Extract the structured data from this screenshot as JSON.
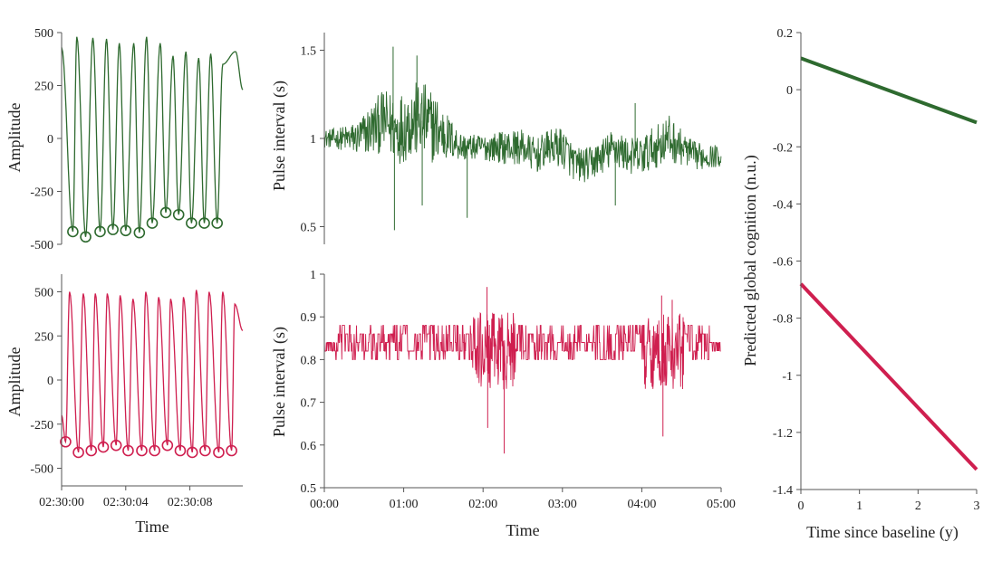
{
  "colors": {
    "green": "#2e6a2f",
    "red": "#cf1f4f",
    "axis": "#555555"
  },
  "chart_data": [
    {
      "id": "waveform-green",
      "type": "line",
      "xlabel": "",
      "ylabel": "Amplitude",
      "xlim": [
        0,
        11.3
      ],
      "ylim": [
        -500,
        500
      ],
      "yticks": [
        500,
        250,
        0,
        -250,
        -500
      ],
      "ytick_labels": [
        "500",
        "250",
        "0",
        "-250",
        "-500"
      ],
      "xticks": [],
      "xtick_labels": [],
      "series": [
        {
          "color": "green",
          "start_value": 430,
          "x_end": 11.3,
          "end_value": 230,
          "peaks_x": [
            0.95,
            1.95,
            2.8,
            3.6,
            4.5,
            5.3,
            6.15,
            6.95,
            7.75,
            8.55,
            9.3,
            10.05,
            10.85
          ],
          "peaks_y": [
            480,
            475,
            470,
            450,
            450,
            480,
            450,
            390,
            410,
            380,
            400,
            350,
            410
          ],
          "troughs_x": [
            0.7,
            1.5,
            2.4,
            3.2,
            4.0,
            4.85,
            5.65,
            6.5,
            7.3,
            8.1,
            8.9,
            9.7
          ],
          "troughs_y": [
            -440,
            -465,
            -440,
            -430,
            -435,
            -445,
            -400,
            -350,
            -360,
            -400,
            -400,
            -400
          ],
          "markers_at_troughs": true
        }
      ]
    },
    {
      "id": "waveform-red",
      "type": "line",
      "xlabel": "Time",
      "ylabel": "Amplitude",
      "xlim": [
        0,
        11.3
      ],
      "ylim": [
        -600,
        600
      ],
      "yticks": [
        500,
        250,
        0,
        -250,
        -500
      ],
      "ytick_labels": [
        "500",
        "250",
        "0",
        "-250",
        "-500"
      ],
      "xticks": [
        0,
        4,
        8
      ],
      "xtick_labels": [
        "02:30:00",
        "02:30:04",
        "02:30:08"
      ],
      "series": [
        {
          "color": "red",
          "start_value": -200,
          "x_end": 11.3,
          "end_value": 280,
          "peaks_x": [
            0.5,
            1.35,
            2.1,
            2.85,
            3.65,
            4.45,
            5.25,
            6.05,
            6.8,
            7.6,
            8.4,
            9.2,
            10.05,
            10.8
          ],
          "peaks_y": [
            500,
            490,
            490,
            490,
            480,
            460,
            500,
            470,
            460,
            470,
            510,
            500,
            500,
            430
          ],
          "troughs_x": [
            0.25,
            1.05,
            1.85,
            2.6,
            3.4,
            4.15,
            5.0,
            5.8,
            6.6,
            7.4,
            8.15,
            8.95,
            9.8,
            10.6
          ],
          "troughs_y": [
            -350,
            -410,
            -400,
            -380,
            -370,
            -400,
            -400,
            -400,
            -370,
            -400,
            -410,
            -400,
            -410,
            -400
          ],
          "markers_at_troughs": true
        }
      ]
    },
    {
      "id": "pulse-green",
      "type": "line",
      "xlabel": "",
      "ylabel": "Pulse interval (s)",
      "xlim": [
        0,
        300
      ],
      "ylim": [
        0.4,
        1.6
      ],
      "yticks": [
        0.5,
        1,
        1.5
      ],
      "ytick_labels": [
        "0.5",
        "1",
        "1.5"
      ],
      "xticks": [],
      "xtick_labels": [],
      "series": [
        {
          "color": "green",
          "step": 0.35,
          "envelope_t": [
            0,
            10,
            25,
            35,
            45,
            55,
            65,
            75,
            85,
            95,
            105,
            115,
            125,
            140,
            150,
            160,
            170,
            180,
            190,
            200,
            210,
            220,
            230,
            240,
            250,
            260,
            270,
            280,
            290,
            300
          ],
          "envelope_mean": [
            1.0,
            1.0,
            1.0,
            1.05,
            1.1,
            1.05,
            1.1,
            1.1,
            1.05,
            1.0,
            0.95,
            0.95,
            0.95,
            0.95,
            0.95,
            0.9,
            0.95,
            0.95,
            0.85,
            0.85,
            0.9,
            0.95,
            0.9,
            0.9,
            0.95,
            1.0,
            0.95,
            0.9,
            0.9,
            0.9
          ],
          "envelope_amp": [
            0.05,
            0.06,
            0.1,
            0.15,
            0.18,
            0.2,
            0.22,
            0.22,
            0.2,
            0.12,
            0.08,
            0.07,
            0.08,
            0.1,
            0.1,
            0.1,
            0.1,
            0.12,
            0.1,
            0.1,
            0.1,
            0.12,
            0.1,
            0.12,
            0.12,
            0.14,
            0.1,
            0.08,
            0.07,
            0.06
          ],
          "spikes": [
            {
              "x": 52,
              "y": 1.52
            },
            {
              "x": 53,
              "y": 0.48
            },
            {
              "x": 70,
              "y": 1.47
            },
            {
              "x": 74,
              "y": 0.62
            },
            {
              "x": 108,
              "y": 0.55
            },
            {
              "x": 235,
              "y": 1.2
            },
            {
              "x": 220,
              "y": 0.62
            }
          ]
        }
      ]
    },
    {
      "id": "pulse-red",
      "type": "line",
      "xlabel": "Time",
      "ylabel": "Pulse interval (s)",
      "xlim": [
        0,
        300
      ],
      "ylim": [
        0.5,
        1.0
      ],
      "yticks": [
        0.5,
        0.6,
        0.7,
        0.8,
        0.9,
        1
      ],
      "ytick_labels": [
        "0.5",
        "0.6",
        "0.7",
        "0.8",
        "0.9",
        "1"
      ],
      "xticks": [
        0,
        60,
        120,
        180,
        240,
        300
      ],
      "xtick_labels": [
        "00:00",
        "01:00",
        "02:00",
        "03:00",
        "04:00",
        "05:00"
      ],
      "series": [
        {
          "color": "red",
          "step": 0.3,
          "levels": [
            0.82,
            0.84,
            0.86,
            0.88,
            0.8
          ],
          "noisy_t": [
            [
              112,
              145
            ],
            [
              242,
              272
            ]
          ],
          "spikes": [
            {
              "x": 123,
              "y": 0.97
            },
            {
              "x": 123.5,
              "y": 0.64
            },
            {
              "x": 136,
              "y": 0.58
            },
            {
              "x": 255,
              "y": 0.95
            },
            {
              "x": 256,
              "y": 0.62
            },
            {
              "x": 263,
              "y": 0.94
            }
          ]
        }
      ]
    },
    {
      "id": "cognition-trend",
      "type": "line",
      "xlabel": "Time since baseline (y)",
      "ylabel": "Predicted global cognition (n.u.)",
      "xlim": [
        0,
        3
      ],
      "ylim": [
        -1.4,
        0.2
      ],
      "yticks": [
        0.2,
        0,
        -0.2,
        -0.4,
        -0.6,
        -0.8,
        -1,
        -1.2,
        -1.4
      ],
      "ytick_labels": [
        "0.2",
        "0",
        "-0.2",
        "-0.4",
        "-0.6",
        "-0.8",
        "-1",
        "-1.2",
        "-1.4"
      ],
      "xticks": [
        0,
        1,
        2,
        3
      ],
      "xtick_labels": [
        "0",
        "1",
        "2",
        "3"
      ],
      "series": [
        {
          "color": "green",
          "x": [
            0,
            3
          ],
          "y": [
            0.11,
            -0.115
          ]
        },
        {
          "color": "red",
          "x": [
            0,
            3
          ],
          "y": [
            -0.68,
            -1.33
          ]
        }
      ]
    }
  ]
}
